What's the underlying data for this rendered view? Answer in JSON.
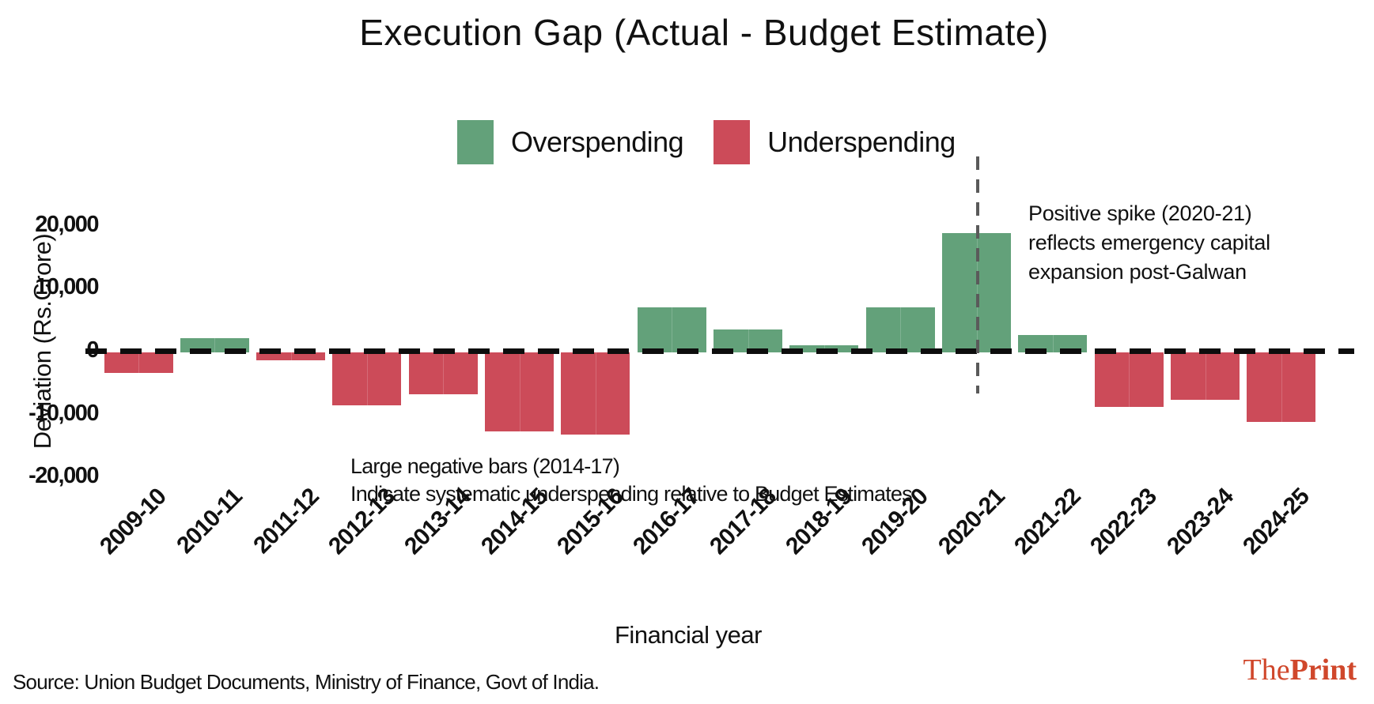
{
  "title": "Execution Gap (Actual - Budget Estimate)",
  "legend": [
    {
      "label": "Overspending",
      "color": "#63a17a"
    },
    {
      "label": "Underspending",
      "color": "#cc4b59"
    }
  ],
  "chart_data": {
    "type": "bar",
    "title": "Execution Gap (Actual - Budget Estimate)",
    "xlabel": "Financial year",
    "ylabel": "Deviation (Rs.Crore)",
    "categories": [
      "2009-10",
      "2010-11",
      "2011-12",
      "2012-13",
      "2013-14",
      "2014-15",
      "2015-16",
      "2016-17",
      "2017-18",
      "2018-19",
      "2019-20",
      "2020-21",
      "2021-22",
      "2022-23",
      "2023-24",
      "2024-25"
    ],
    "values": [
      -3300,
      2200,
      -1200,
      -8400,
      -6700,
      -12600,
      -13000,
      7100,
      3600,
      1100,
      7100,
      19000,
      2800,
      -8700,
      -7500,
      -11000
    ],
    "ylim": [
      -20000,
      24000
    ],
    "yticks": [
      20000,
      10000,
      0,
      -10000,
      -20000
    ],
    "ytick_labels": [
      "20,000",
      "10,000",
      "0",
      "-10,000",
      "-20,000"
    ],
    "colors": {
      "positive": "#63a17a",
      "negative": "#cc4b59"
    },
    "zero_line_style": "dashed-black",
    "reference_line": {
      "category": "2020-21",
      "orientation": "vertical",
      "style": "dashed-gray"
    },
    "legend_position": "top-center",
    "grid": false
  },
  "annotations": {
    "spike": "Positive spike (2020-21)\nreflects emergency capital\nexpansion post-Galwan",
    "negative": "Large negative bars (2014-17)\nIndicate systematic underspending relative to Budget Estimates"
  },
  "footer": {
    "source": "Source: Union Budget Documents, Ministry of Finance, Govt of India.",
    "brand_the": "The",
    "brand_print": "Print",
    "brand_color": "#d0472b"
  }
}
